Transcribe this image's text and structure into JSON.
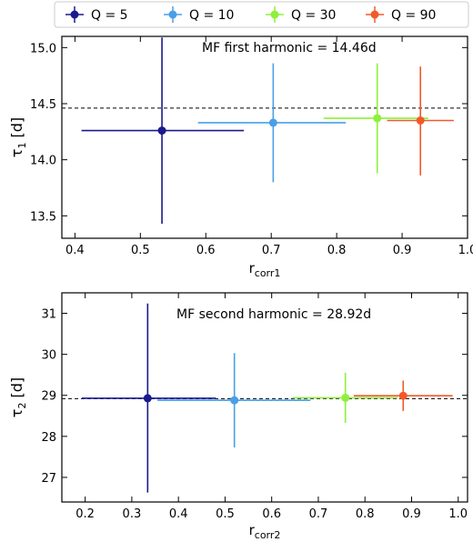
{
  "legend": {
    "placement": "top-center",
    "entries": [
      {
        "label": "Q = 5",
        "color": "#1a1a8c"
      },
      {
        "label": "Q = 10",
        "color": "#4a9fe8"
      },
      {
        "label": "Q = 30",
        "color": "#8ef03c"
      },
      {
        "label": "Q = 90",
        "color": "#f05a28"
      }
    ]
  },
  "chart_data": [
    {
      "type": "scatter",
      "annotation": "MF first harmonic  = 14.46d",
      "xlabel_main": "r",
      "xlabel_sub": "corr1",
      "ylabel_main": "τ",
      "ylabel_sub": "1",
      "ylabel_unit": " [d]",
      "xlim": [
        0.38,
        1.0
      ],
      "ylim": [
        13.3,
        15.1
      ],
      "xticks": [
        0.4,
        0.5,
        0.6,
        0.7,
        0.8,
        0.9,
        1.0
      ],
      "xtick_labels": [
        "0.4",
        "0.5",
        "0.6",
        "0.7",
        "0.8",
        "0.9",
        "1.0"
      ],
      "yticks": [
        13.5,
        14.0,
        14.5,
        15.0
      ],
      "ytick_labels": [
        "13.5",
        "14.0",
        "14.5",
        "15.0"
      ],
      "reference_line": 14.46,
      "series": [
        {
          "name": "Q = 5",
          "color": "#1a1a8c",
          "x": 0.533,
          "y": 14.26,
          "xerr": [
            0.41,
            0.658
          ],
          "yerr": [
            13.43,
            15.09
          ]
        },
        {
          "name": "Q = 10",
          "color": "#4a9fe8",
          "x": 0.703,
          "y": 14.33,
          "xerr": [
            0.588,
            0.814
          ],
          "yerr": [
            13.8,
            14.86
          ]
        },
        {
          "name": "Q = 30",
          "color": "#8ef03c",
          "x": 0.862,
          "y": 14.37,
          "xerr": [
            0.78,
            0.94
          ],
          "yerr": [
            13.88,
            14.86
          ]
        },
        {
          "name": "Q = 90",
          "color": "#f05a28",
          "x": 0.928,
          "y": 14.35,
          "xerr": [
            0.877,
            0.979
          ],
          "yerr": [
            13.86,
            14.83
          ]
        }
      ]
    },
    {
      "type": "scatter",
      "annotation": "MF second harmonic  = 28.92d",
      "xlabel_main": "r",
      "xlabel_sub": "corr2",
      "ylabel_main": "τ",
      "ylabel_sub": "2",
      "ylabel_unit": " [d]",
      "xlim": [
        0.15,
        1.02
      ],
      "ylim": [
        26.4,
        31.5
      ],
      "xticks": [
        0.2,
        0.3,
        0.4,
        0.5,
        0.6,
        0.7,
        0.8,
        0.9,
        1.0
      ],
      "xtick_labels": [
        "0.2",
        "0.3",
        "0.4",
        "0.5",
        "0.6",
        "0.7",
        "0.8",
        "0.9",
        "1.0"
      ],
      "yticks": [
        27,
        28,
        29,
        30,
        31
      ],
      "ytick_labels": [
        "27",
        "28",
        "29",
        "30",
        "31"
      ],
      "reference_line": 28.92,
      "series": [
        {
          "name": "Q = 5",
          "color": "#1a1a8c",
          "x": 0.334,
          "y": 28.93,
          "xerr": [
            0.193,
            0.48
          ],
          "yerr": [
            26.63,
            31.24
          ]
        },
        {
          "name": "Q = 10",
          "color": "#4a9fe8",
          "x": 0.52,
          "y": 28.88,
          "xerr": [
            0.355,
            0.683
          ],
          "yerr": [
            27.73,
            30.03
          ]
        },
        {
          "name": "Q = 30",
          "color": "#8ef03c",
          "x": 0.758,
          "y": 28.94,
          "xerr": [
            0.645,
            0.87
          ],
          "yerr": [
            28.33,
            29.55
          ]
        },
        {
          "name": "Q = 90",
          "color": "#f05a28",
          "x": 0.882,
          "y": 28.99,
          "xerr": [
            0.776,
            0.988
          ],
          "yerr": [
            28.62,
            29.36
          ]
        }
      ]
    }
  ]
}
